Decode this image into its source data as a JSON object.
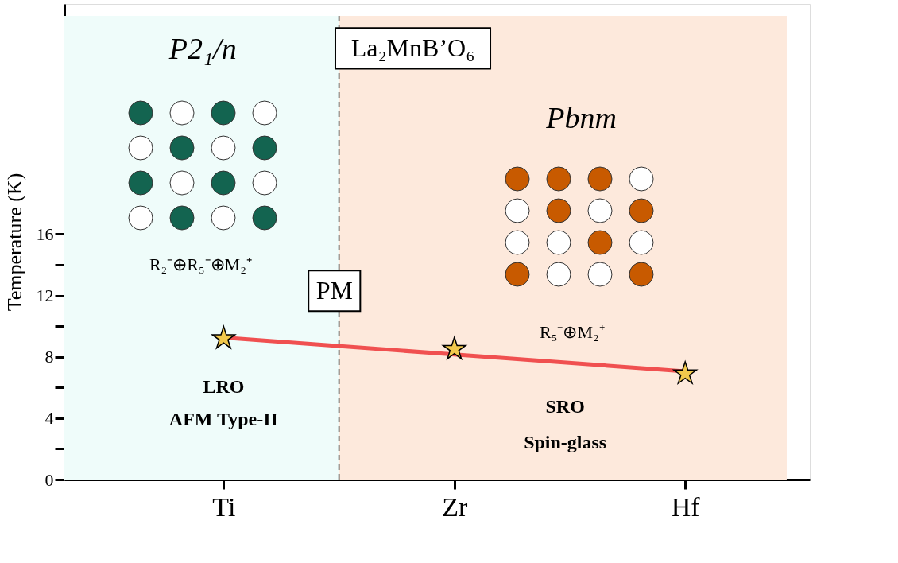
{
  "chart_data": {
    "type": "scatter",
    "ylabel": "Temperature (K)",
    "categories": [
      "Ti",
      "Zr",
      "Hf"
    ],
    "ylim": [
      0,
      31
    ],
    "yticks": [
      0,
      {
        "value": 2,
        "label": null
      },
      4,
      {
        "value": 6,
        "label": null
      },
      8,
      {
        "value": 10,
        "label": null
      },
      12,
      {
        "value": 14,
        "label": null
      },
      16
    ],
    "series": [
      {
        "marker": "star",
        "color": "#f2c94c",
        "values": [
          9.2,
          8.5,
          6.9
        ]
      },
      {
        "type": "line",
        "color": "#f05050",
        "line_style": "solid",
        "values": [
          9.25,
          8.15,
          7.05
        ]
      }
    ],
    "annotations": [
      "P2₁/n",
      "La₂MnB’O₆",
      "Pbnm",
      "PM",
      "R₂⁻⊕R₅⁻⊕M₂⁺",
      "R₅⁻⊕M₂⁺",
      "LRO",
      "AFM Type-II",
      "SRO",
      "Spin-glass"
    ],
    "grid": false
  }
}
